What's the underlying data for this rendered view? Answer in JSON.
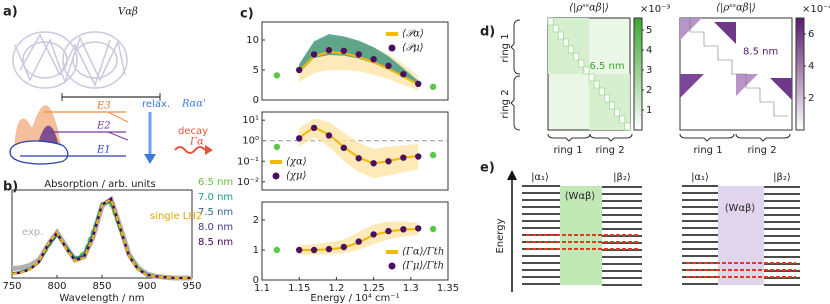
{
  "figure": {
    "a": {
      "label": "a)",
      "V": "Vαβ",
      "E3": "E3",
      "E2": "E2",
      "E1": "E1",
      "relax": "relax.",
      "R": "Rαα'",
      "decay": "decay",
      "gamma": "Γα"
    },
    "b": {
      "label": "b)",
      "title": "Absorption / arb. units",
      "xlabel": "Wavelength / nm"
    },
    "c": {
      "label": "c)",
      "xlabel": "Energy / 10⁴ cm⁻¹"
    },
    "d": {
      "label": "d)",
      "ring1": "ring 1",
      "ring2": "ring 2",
      "colorbars": [
        {
          "title": "⟨|ρˢˢαβ|⟩",
          "clim": [
            0,
            5.6
          ],
          "ticks": [
            1,
            2,
            3,
            4,
            5
          ],
          "scale_label": "×10⁻³",
          "color": "#3aa830",
          "size_label": "6.5 nm"
        },
        {
          "title": "⟨|ρˢˢαβ|⟩",
          "clim": [
            0,
            7
          ],
          "ticks": [
            2,
            4,
            6
          ],
          "scale_label": "×10⁻⁴",
          "color": "#5a1a6e",
          "size_label": "8.5 nm"
        }
      ]
    },
    "e": {
      "label": "e)",
      "alpha": "|α₁⟩",
      "beta": "|β₂⟩",
      "W": "⟨Wαβ⟩",
      "energy": "Energy"
    }
  },
  "chart_data": [
    {
      "type": "line",
      "x": [
        750,
        760,
        770,
        780,
        790,
        800,
        810,
        820,
        830,
        840,
        850,
        860,
        870,
        880,
        890,
        900,
        910,
        920,
        930,
        940,
        950
      ],
      "xlim": [
        750,
        950
      ],
      "xticks": [
        750,
        800,
        850,
        900,
        950
      ],
      "ylim": [
        0,
        1.12
      ],
      "series": [
        {
          "name": "exp.",
          "color": "#b0b0b0",
          "width": 5,
          "values": [
            0.12,
            0.13,
            0.16,
            0.23,
            0.42,
            0.58,
            0.4,
            0.23,
            0.27,
            0.52,
            0.92,
            1.0,
            0.66,
            0.3,
            0.13,
            0.05,
            0.02,
            0.01,
            0,
            0,
            0
          ]
        },
        {
          "name": "6.5 nm",
          "color": "#6ac043",
          "dash": true,
          "values": [
            0.06,
            0.08,
            0.12,
            0.2,
            0.38,
            0.54,
            0.4,
            0.26,
            0.33,
            0.62,
            0.95,
            0.92,
            0.6,
            0.3,
            0.13,
            0.05,
            0.02,
            0.01,
            0,
            0,
            0
          ]
        },
        {
          "name": "7.0 nm",
          "color": "#1f9e89",
          "values": [
            0.06,
            0.08,
            0.12,
            0.2,
            0.4,
            0.55,
            0.4,
            0.25,
            0.3,
            0.58,
            0.95,
            0.96,
            0.62,
            0.29,
            0.12,
            0.05,
            0.02,
            0.01,
            0,
            0,
            0
          ]
        },
        {
          "name": "7.5 nm",
          "color": "#31688e",
          "values": [
            0.05,
            0.07,
            0.11,
            0.2,
            0.41,
            0.56,
            0.39,
            0.24,
            0.28,
            0.55,
            0.94,
            0.98,
            0.63,
            0.28,
            0.11,
            0.04,
            0.02,
            0.01,
            0,
            0,
            0
          ]
        },
        {
          "name": "8.0 nm",
          "color": "#443983",
          "values": [
            0.05,
            0.07,
            0.11,
            0.2,
            0.42,
            0.57,
            0.39,
            0.23,
            0.27,
            0.53,
            0.93,
            1.0,
            0.64,
            0.28,
            0.11,
            0.04,
            0.02,
            0.01,
            0,
            0,
            0
          ]
        },
        {
          "name": "8.5 nm",
          "color": "#440154",
          "values": [
            0.05,
            0.07,
            0.11,
            0.21,
            0.43,
            0.58,
            0.38,
            0.22,
            0.26,
            0.52,
            0.93,
            1.01,
            0.65,
            0.28,
            0.11,
            0.04,
            0.02,
            0.01,
            0,
            0,
            0
          ]
        },
        {
          "name": "single LH2",
          "color": "#f5b800",
          "dash": true,
          "values": [
            0.05,
            0.07,
            0.11,
            0.21,
            0.43,
            0.58,
            0.38,
            0.22,
            0.26,
            0.52,
            0.93,
            1.0,
            0.65,
            0.28,
            0.11,
            0.04,
            0.02,
            0.01,
            0,
            0,
            0
          ]
        }
      ]
    },
    {
      "type": "line",
      "x": [
        1.15,
        1.17,
        1.19,
        1.21,
        1.23,
        1.25,
        1.27,
        1.29,
        1.31
      ],
      "xlim": [
        1.1,
        1.35
      ],
      "xticks": [],
      "ylim": [
        0,
        13
      ],
      "yticks": [
        0,
        5,
        10
      ],
      "series": [
        {
          "name": "⟨𝒫α⟩",
          "color": "#f5b800",
          "band_color": "#fde3a0",
          "values": [
            4.8,
            7.3,
            8.0,
            7.8,
            7.2,
            6.3,
            5.2,
            3.9,
            2.6
          ],
          "lower": [
            3,
            4.5,
            5,
            5,
            4.8,
            4.2,
            3.5,
            2.5,
            1.6
          ],
          "upper": [
            6,
            9.5,
            10.5,
            10.3,
            9.8,
            8.8,
            7.6,
            6,
            4
          ]
        },
        {
          "name": "⟨𝒫μ⟩",
          "color": "#4b0f5f",
          "band_color": "#2a8f7a",
          "dots": true,
          "values": [
            5,
            7.6,
            8.3,
            8.2,
            7.6,
            6.8,
            5.7,
            4.3,
            2.7
          ],
          "lower": [
            4.5,
            7,
            7.5,
            7.4,
            6.9,
            6.1,
            5,
            3.8,
            2.4
          ],
          "upper": [
            6,
            9.8,
            11,
            10.6,
            9.9,
            8.8,
            7.3,
            5.3,
            3.2
          ]
        },
        {
          "color": "#5cc84a",
          "dots": true,
          "x": [
            1.12,
            1.33
          ],
          "values": [
            4.1,
            2.2
          ]
        }
      ]
    },
    {
      "type": "line",
      "log": true,
      "x": [
        1.15,
        1.17,
        1.19,
        1.21,
        1.23,
        1.25,
        1.27,
        1.29,
        1.31
      ],
      "xlim": [
        1.1,
        1.35
      ],
      "xticks": [],
      "ylim": [
        0.004,
        25
      ],
      "yticks": [
        {
          "value": 0.01,
          "label": "10⁻²"
        },
        {
          "value": 0.1,
          "label": "10⁻¹"
        },
        {
          "value": 1,
          "label": "10⁰"
        },
        {
          "value": 10,
          "label": "10¹"
        }
      ],
      "hline": 1,
      "series": [
        {
          "name": "⟨χα⟩",
          "color": "#f5b800",
          "band_color": "#fde3a0",
          "values": [
            1.4,
            4.5,
            2,
            0.5,
            0.15,
            0.08,
            0.1,
            0.15,
            0.18
          ],
          "lower": [
            0.5,
            1.5,
            0.5,
            0.1,
            0.03,
            0.015,
            0.02,
            0.03,
            0.04
          ],
          "upper": [
            4,
            12,
            8,
            2.5,
            0.8,
            0.4,
            0.5,
            0.6,
            0.7
          ]
        },
        {
          "name": "⟨χμ⟩",
          "color": "#4b0f5f",
          "dots": true,
          "values": [
            1.3,
            4.2,
            1.8,
            0.45,
            0.14,
            0.08,
            0.1,
            0.15,
            0.17
          ]
        },
        {
          "color": "#5cc84a",
          "dots": true,
          "x": [
            1.12,
            1.33
          ],
          "values": [
            0.5,
            0.2
          ]
        }
      ]
    },
    {
      "type": "line",
      "x": [
        1.15,
        1.17,
        1.19,
        1.21,
        1.23,
        1.25,
        1.27,
        1.29,
        1.31
      ],
      "xlim": [
        1.1,
        1.35
      ],
      "xticks": [
        1.1,
        1.15,
        1.2,
        1.25,
        1.3,
        1.35
      ],
      "ylim": [
        0,
        2.6
      ],
      "yticks": [
        0,
        1,
        2
      ],
      "series": [
        {
          "name": "⟨Γα⟩/Γth",
          "color": "#f5b800",
          "band_color": "#fde3a0",
          "values": [
            1.0,
            1.0,
            1.02,
            1.08,
            1.25,
            1.5,
            1.62,
            1.68,
            1.7
          ],
          "lower": [
            0.85,
            0.85,
            0.85,
            0.9,
            1.0,
            1.2,
            1.35,
            1.45,
            1.5
          ],
          "upper": [
            1.15,
            1.2,
            1.25,
            1.35,
            1.6,
            1.85,
            1.95,
            1.95,
            1.9
          ]
        },
        {
          "name": "⟨Γμ⟩/Γth",
          "color": "#4b0f5f",
          "dots": true,
          "values": [
            1.0,
            1.0,
            1.03,
            1.1,
            1.28,
            1.52,
            1.63,
            1.69,
            1.72
          ]
        },
        {
          "color": "#5cc84a",
          "dots": true,
          "x": [
            1.12,
            1.33
          ],
          "values": [
            1.0,
            1.7
          ]
        }
      ]
    }
  ]
}
